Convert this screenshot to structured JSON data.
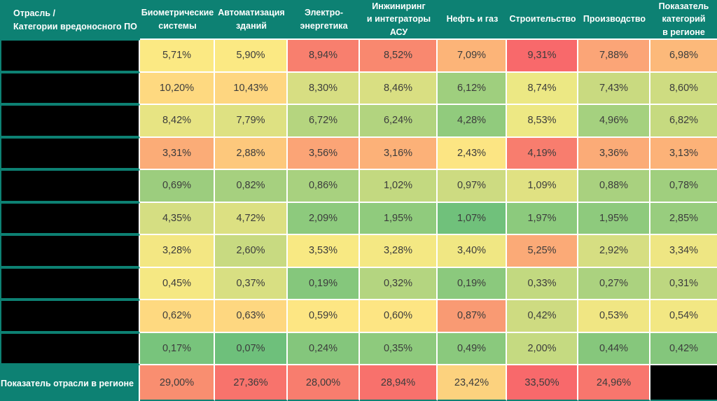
{
  "table": {
    "corner_header": "Отрасль /\nКатегории вредоносного ПО",
    "columns": [
      "Биометрические\nсистемы",
      "Автоматизация\nзданий",
      "Электро-\nэнергетика",
      "Инжиниринг\nи интеграторы АСУ",
      "Нефть и газ",
      "Строительство",
      "Производство",
      "Показатель\nкатегорий\nв регионе"
    ],
    "row_labels_redacted": true,
    "rows": [
      {
        "values": [
          "5,71%",
          "5,90%",
          "8,94%",
          "8,52%",
          "7,09%",
          "9,31%",
          "7,88%",
          "6,98%"
        ],
        "colors": [
          "#fbe983",
          "#fbe983",
          "#f87f6e",
          "#f9886f",
          "#fcb478",
          "#f8696b",
          "#fba577",
          "#fcb97a"
        ]
      },
      {
        "values": [
          "10,20%",
          "10,43%",
          "8,30%",
          "8,46%",
          "6,12%",
          "8,74%",
          "7,43%",
          "8,60%"
        ],
        "colors": [
          "#fed980",
          "#fed680",
          "#d7de82",
          "#d9df82",
          "#9fcf7e",
          "#ece884",
          "#c9da80",
          "#cedc81"
        ]
      },
      {
        "values": [
          "8,42%",
          "7,79%",
          "6,72%",
          "6,24%",
          "4,28%",
          "8,53%",
          "4,96%",
          "6,82%"
        ],
        "colors": [
          "#e7e483",
          "#dee182",
          "#b5d57f",
          "#b2d47f",
          "#91cb7d",
          "#ede884",
          "#a5d17f",
          "#c6da80"
        ]
      },
      {
        "values": [
          "3,31%",
          "2,88%",
          "3,56%",
          "3,16%",
          "2,43%",
          "4,19%",
          "3,36%",
          "3,13%"
        ],
        "colors": [
          "#fbac77",
          "#fdc87c",
          "#fba476",
          "#fcb178",
          "#fce583",
          "#f87d6e",
          "#fbab77",
          "#fcb278"
        ]
      },
      {
        "values": [
          "0,69%",
          "0,82%",
          "0,86%",
          "1,02%",
          "0,97%",
          "1,09%",
          "0,88%",
          "0,78%"
        ],
        "colors": [
          "#9ccd7e",
          "#a6d07f",
          "#a8d17f",
          "#c3d980",
          "#cddb81",
          "#e0e182",
          "#a9d17f",
          "#a0cf7e"
        ]
      },
      {
        "values": [
          "4,35%",
          "4,72%",
          "2,09%",
          "1,95%",
          "1,07%",
          "1,97%",
          "1,95%",
          "2,85%"
        ],
        "colors": [
          "#d5de82",
          "#dce082",
          "#8dca7d",
          "#90cb7d",
          "#70c17b",
          "#8cca7d",
          "#8eca7d",
          "#98cd7e"
        ]
      },
      {
        "values": [
          "3,28%",
          "2,60%",
          "3,53%",
          "3,28%",
          "3,40%",
          "5,25%",
          "2,92%",
          "3,34%"
        ],
        "colors": [
          "#f3e783",
          "#c8da81",
          "#f8e983",
          "#f4e883",
          "#f0e783",
          "#fbaa77",
          "#d6de82",
          "#eee683"
        ]
      },
      {
        "values": [
          "0,45%",
          "0,37%",
          "0,19%",
          "0,32%",
          "0,19%",
          "0,33%",
          "0,27%",
          "0,31%"
        ],
        "colors": [
          "#f5e883",
          "#d8df82",
          "#85c77c",
          "#b4d580",
          "#8bc97d",
          "#c2d980",
          "#abd27f",
          "#bdd780"
        ]
      },
      {
        "values": [
          "0,62%",
          "0,63%",
          "0,59%",
          "0,60%",
          "0,87%",
          "0,42%",
          "0,53%",
          "0,54%"
        ],
        "colors": [
          "#fed980",
          "#fed780",
          "#fde683",
          "#fde583",
          "#f99a73",
          "#cedb81",
          "#f0e683",
          "#f2e783"
        ]
      },
      {
        "values": [
          "0,17%",
          "0,07%",
          "0,24%",
          "0,35%",
          "0,49%",
          "2,00%",
          "0,44%",
          "0,42%"
        ],
        "colors": [
          "#78c47c",
          "#6ec07b",
          "#84c67c",
          "#8eca7d",
          "#8ac97d",
          "#c5da81",
          "#86c77c",
          "#84c67c"
        ]
      }
    ],
    "footer": {
      "label": "Показатель отрасли в регионе",
      "values": [
        "29,00%",
        "27,36%",
        "28,00%",
        "28,94%",
        "23,42%",
        "33,50%",
        "24,96%"
      ],
      "colors": [
        "#f98e70",
        "#f8736c",
        "#f87d6e",
        "#f8716c",
        "#fcd27e",
        "#f8696b",
        "#f8766d"
      ],
      "last_cell_redacted": true
    },
    "palette": {
      "header_teal": "#0d8173",
      "redacted_black": "#000000",
      "grid_line_white": "#ffffff",
      "scale_min_green": "#63be7b",
      "scale_mid_yellow": "#ffeb84",
      "scale_max_red": "#f8696b",
      "value_text": "#3c3c3c"
    }
  },
  "chart_data": {
    "type": "heatmap",
    "title": "Отрасль / Категории вредоносного ПО",
    "columns": [
      "Биометрические системы",
      "Автоматизация зданий",
      "Электро-энергетика",
      "Инжиниринг и интеграторы АСУ",
      "Нефть и газ",
      "Строительство",
      "Производство",
      "Показатель категорий в регионе"
    ],
    "row_labels": [
      "[redacted]",
      "[redacted]",
      "[redacted]",
      "[redacted]",
      "[redacted]",
      "[redacted]",
      "[redacted]",
      "[redacted]",
      "[redacted]",
      "[redacted]"
    ],
    "values_percent": [
      [
        5.71,
        5.9,
        8.94,
        8.52,
        7.09,
        9.31,
        7.88,
        6.98
      ],
      [
        10.2,
        10.43,
        8.3,
        8.46,
        6.12,
        8.74,
        7.43,
        8.6
      ],
      [
        8.42,
        7.79,
        6.72,
        6.24,
        4.28,
        8.53,
        4.96,
        6.82
      ],
      [
        3.31,
        2.88,
        3.56,
        3.16,
        2.43,
        4.19,
        3.36,
        3.13
      ],
      [
        0.69,
        0.82,
        0.86,
        1.02,
        0.97,
        1.09,
        0.88,
        0.78
      ],
      [
        4.35,
        4.72,
        2.09,
        1.95,
        1.07,
        1.97,
        1.95,
        2.85
      ],
      [
        3.28,
        2.6,
        3.53,
        3.28,
        3.4,
        5.25,
        2.92,
        3.34
      ],
      [
        0.45,
        0.37,
        0.19,
        0.32,
        0.19,
        0.33,
        0.27,
        0.31
      ],
      [
        0.62,
        0.63,
        0.59,
        0.6,
        0.87,
        0.42,
        0.53,
        0.54
      ],
      [
        0.17,
        0.07,
        0.24,
        0.35,
        0.49,
        2.0,
        0.44,
        0.42
      ]
    ],
    "footer_row": {
      "label": "Показатель отрасли в регионе",
      "values_percent": [
        29.0,
        27.36,
        28.0,
        28.94,
        23.42,
        33.5,
        24.96,
        null
      ]
    },
    "color_scale": {
      "min": "#63be7b",
      "mid": "#ffeb84",
      "max": "#f8696b"
    },
    "legend_position": "none",
    "grid": true
  }
}
